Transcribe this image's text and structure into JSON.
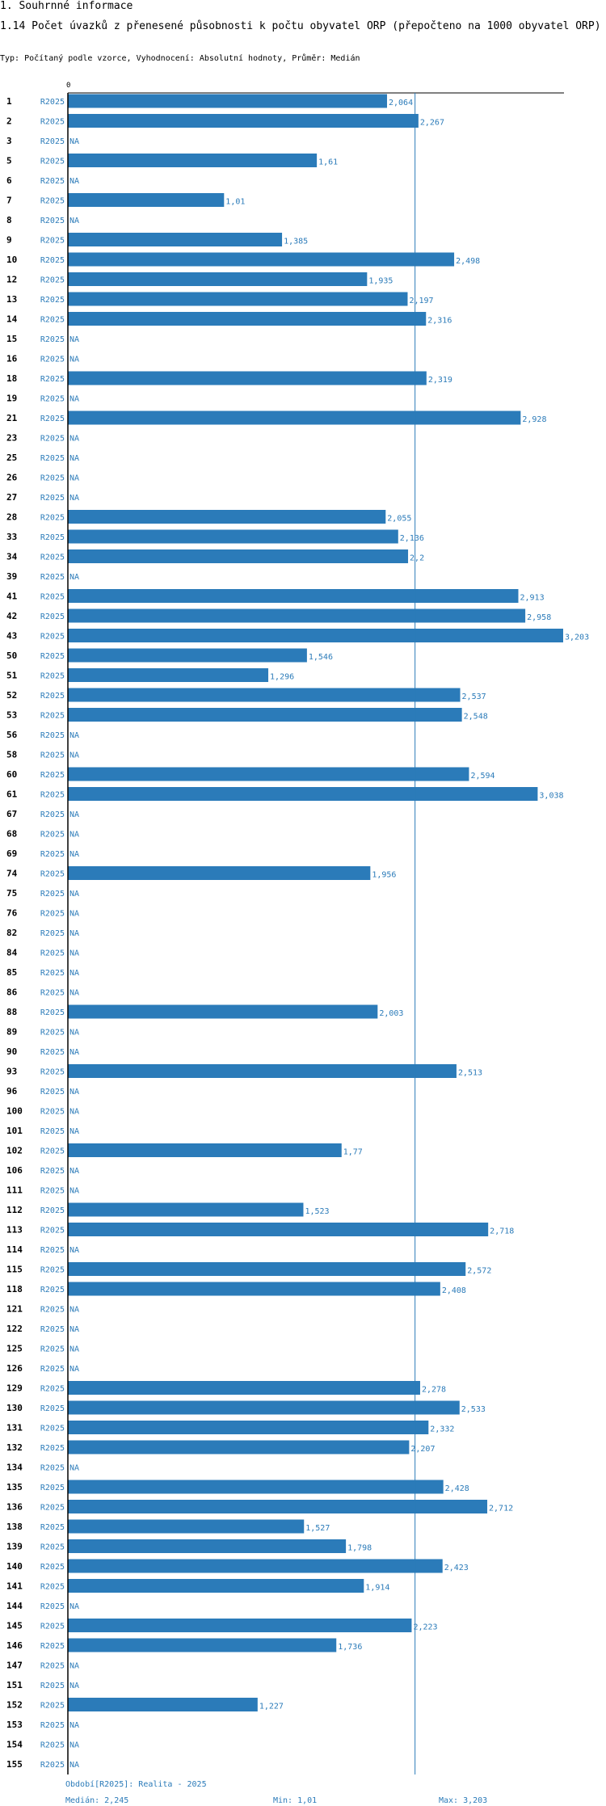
{
  "section_title": "1. Souhrnné informace",
  "chart_title": "1.14 Počet úvazků z přenesené působnosti k počtu obyvatel ORP (přepočteno na 1000 obyvatel ORP)",
  "subtitle": "Typ: Počítaný podle vzorce, Vyhodnocení: Absolutní hodnoty, Průměr: Medián",
  "colors": {
    "bar": "#2b7bb9",
    "label": "#2b7bb9",
    "median_line": "#2b7bb9",
    "axis": "#000000"
  },
  "footer": {
    "period": "Období[R2025]: Realita - 2025",
    "median": "Medián: 2,245",
    "min": "Min: 1,01",
    "max": "Max: 3,203"
  },
  "chart_data": {
    "type": "bar",
    "orientation": "horizontal",
    "title": "1.14 Počet úvazků z přenesené působnosti k počtu obyvatel ORP (přepočteno na 1000 obyvatel ORP)",
    "axis_zero_label": "0",
    "series_label": "R2025",
    "na_label": "NA",
    "median": 2.245,
    "xlim": [
      0,
      3.203
    ],
    "categories": [
      "1",
      "2",
      "3",
      "5",
      "6",
      "7",
      "8",
      "9",
      "10",
      "12",
      "13",
      "14",
      "15",
      "16",
      "18",
      "19",
      "21",
      "23",
      "25",
      "26",
      "27",
      "28",
      "33",
      "34",
      "39",
      "41",
      "42",
      "43",
      "50",
      "51",
      "52",
      "53",
      "56",
      "58",
      "60",
      "61",
      "67",
      "68",
      "69",
      "74",
      "75",
      "76",
      "82",
      "84",
      "85",
      "86",
      "88",
      "89",
      "90",
      "93",
      "96",
      "100",
      "101",
      "102",
      "106",
      "111",
      "112",
      "113",
      "114",
      "115",
      "118",
      "121",
      "122",
      "125",
      "126",
      "129",
      "130",
      "131",
      "132",
      "134",
      "135",
      "136",
      "138",
      "139",
      "140",
      "141",
      "144",
      "145",
      "146",
      "147",
      "151",
      "152",
      "153",
      "154",
      "155"
    ],
    "values": [
      2.064,
      2.267,
      null,
      1.61,
      null,
      1.01,
      null,
      1.385,
      2.498,
      1.935,
      2.197,
      2.316,
      null,
      null,
      2.319,
      null,
      2.928,
      null,
      null,
      null,
      null,
      2.055,
      2.136,
      2.2,
      null,
      2.913,
      2.958,
      3.203,
      1.546,
      1.296,
      2.537,
      2.548,
      null,
      null,
      2.594,
      3.038,
      null,
      null,
      null,
      1.956,
      null,
      null,
      null,
      null,
      null,
      null,
      2.003,
      null,
      null,
      2.513,
      null,
      null,
      null,
      1.77,
      null,
      null,
      1.523,
      2.718,
      null,
      2.572,
      2.408,
      null,
      null,
      null,
      null,
      2.278,
      2.533,
      2.332,
      2.207,
      null,
      2.428,
      2.712,
      1.527,
      1.798,
      2.423,
      1.914,
      null,
      2.223,
      1.736,
      null,
      null,
      1.227,
      null,
      null,
      null
    ],
    "value_labels": [
      "2,064",
      "2,267",
      "NA",
      "1,61",
      "NA",
      "1,01",
      "NA",
      "1,385",
      "2,498",
      "1,935",
      "2,197",
      "2,316",
      "NA",
      "NA",
      "2,319",
      "NA",
      "2,928",
      "NA",
      "NA",
      "NA",
      "NA",
      "2,055",
      "2,136",
      "2,2",
      "NA",
      "2,913",
      "2,958",
      "3,203",
      "1,546",
      "1,296",
      "2,537",
      "2,548",
      "NA",
      "NA",
      "2,594",
      "3,038",
      "NA",
      "NA",
      "NA",
      "1,956",
      "NA",
      "NA",
      "NA",
      "NA",
      "NA",
      "NA",
      "2,003",
      "NA",
      "NA",
      "2,513",
      "NA",
      "NA",
      "NA",
      "1,77",
      "NA",
      "NA",
      "1,523",
      "2,718",
      "NA",
      "2,572",
      "2,408",
      "NA",
      "NA",
      "NA",
      "NA",
      "2,278",
      "2,533",
      "2,332",
      "2,207",
      "NA",
      "2,428",
      "2,712",
      "1,527",
      "1,798",
      "2,423",
      "1,914",
      "NA",
      "2,223",
      "1,736",
      "NA",
      "NA",
      "1,227",
      "NA",
      "NA",
      "NA"
    ]
  }
}
